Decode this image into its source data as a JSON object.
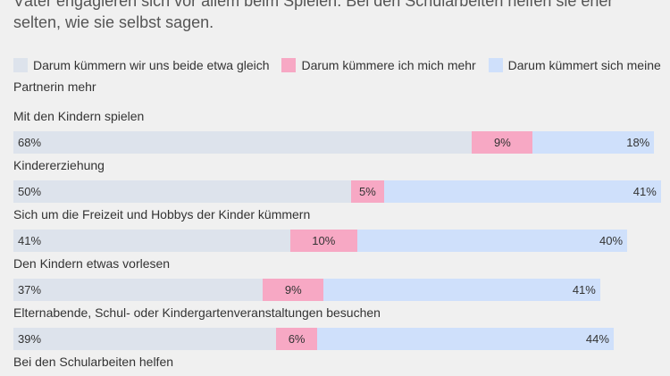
{
  "chart_data": {
    "type": "stacked-bar-horizontal",
    "subtitle": "Väter engagieren sich vor allem beim Spielen. Bei den Schularbeiten helfen sie eher selten, wie sie selbst sagen.",
    "categories": [
      "Mit den Kindern spielen",
      "Kindererziehung",
      "Sich um die Freizeit und Hobbys der Kinder kümmern",
      "Den Kindern etwas vorlesen",
      "Elternabende, Schul- oder Kindergartenveranstaltungen besuchen",
      "Bei den Schularbeiten helfen"
    ],
    "xlim": [
      0,
      100
    ],
    "series": [
      {
        "name": "Darum kümmern wir uns beide etwa gleich",
        "color": "#dde3ec",
        "values": [
          68,
          50,
          41,
          37,
          39,
          null
        ],
        "value_labels": [
          "68%",
          "50%",
          "41%",
          "37%",
          "39%",
          null
        ]
      },
      {
        "name": "Darum kümmere ich mich mehr",
        "color": "#f7a8c4",
        "values": [
          9,
          5,
          10,
          9,
          6,
          null
        ],
        "value_labels": [
          "9%",
          "5%",
          "10%",
          "9%",
          "6%",
          null
        ]
      },
      {
        "name": "Darum kümmert sich meine Partnerin mehr",
        "color": "#cfe0fb",
        "values": [
          18,
          41,
          40,
          41,
          44,
          null
        ],
        "value_labels": [
          "18%",
          "41%",
          "40%",
          "41%",
          "44%",
          null
        ]
      }
    ]
  }
}
